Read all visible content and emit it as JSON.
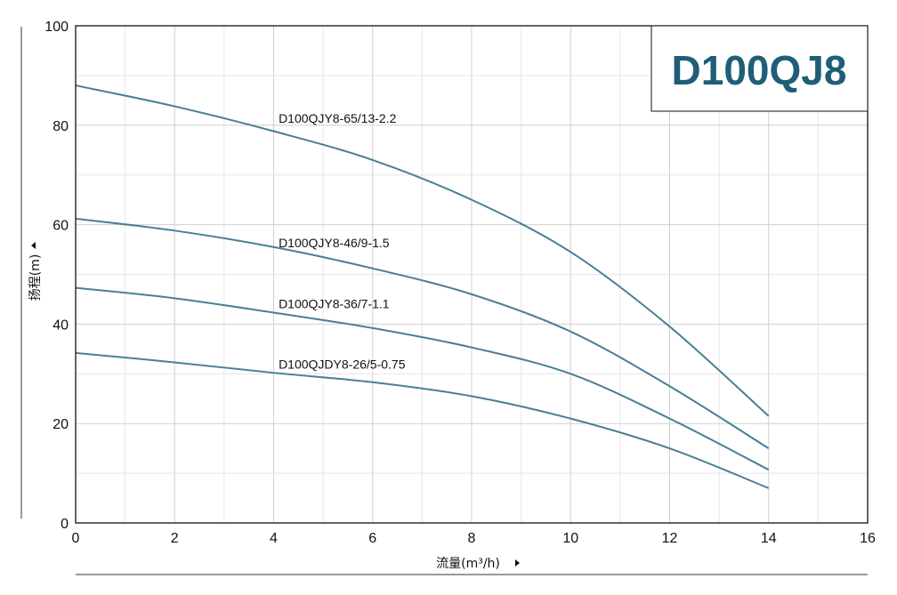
{
  "chart_data": {
    "type": "line",
    "title": "D100QJ8",
    "xlabel": "流量(m³/h)",
    "ylabel": "扬程(m)",
    "xlim": [
      0,
      16
    ],
    "ylim": [
      0,
      100
    ],
    "x_ticks": [
      0,
      2,
      4,
      6,
      8,
      10,
      12,
      14,
      16
    ],
    "y_ticks": [
      0,
      20,
      40,
      60,
      80,
      100
    ],
    "grid": true,
    "line_color": "#4a7f95",
    "series": [
      {
        "name": "D100QJY8-65/13-2.2",
        "x": [
          0,
          2,
          4,
          6,
          8,
          10,
          12,
          14
        ],
        "y": [
          88,
          83.8,
          78.8,
          73,
          65,
          54.5,
          39.5,
          21.5
        ]
      },
      {
        "name": "D100QJY8-46/9-1.5",
        "x": [
          0,
          2,
          4,
          6,
          8,
          10,
          12,
          14
        ],
        "y": [
          61.2,
          58.8,
          55.5,
          51.2,
          46,
          38.5,
          27.5,
          15
        ]
      },
      {
        "name": "D100QJY8-36/7-1.1",
        "x": [
          0,
          2,
          4,
          6,
          8,
          10,
          12,
          14
        ],
        "y": [
          47.3,
          45.2,
          42.3,
          39.2,
          35.3,
          30,
          21,
          10.7
        ]
      },
      {
        "name": "D100QJDY8-26/5-0.75",
        "x": [
          0,
          2,
          4,
          6,
          8,
          10,
          12,
          14
        ],
        "y": [
          34.2,
          32.3,
          30.2,
          28.3,
          25.5,
          21,
          15,
          7
        ]
      }
    ]
  }
}
